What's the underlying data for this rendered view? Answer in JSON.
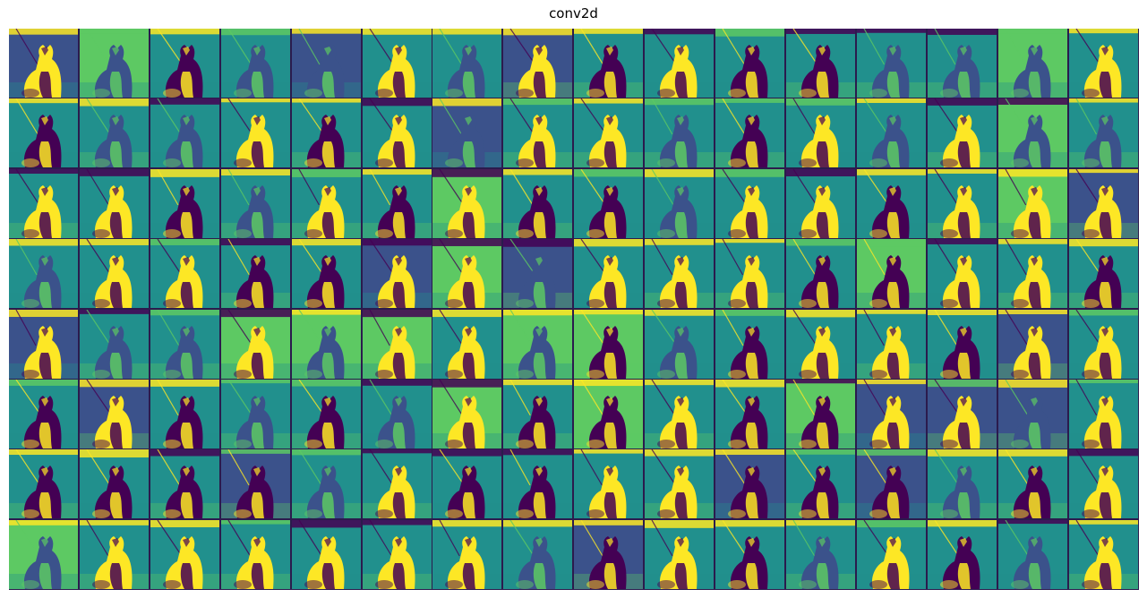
{
  "figure": {
    "title": "conv2d",
    "grid": {
      "rows": 8,
      "cols": 16
    },
    "colormap": [
      "#440154",
      "#3b528b",
      "#21908d",
      "#5dc963",
      "#fde725"
    ]
  }
}
